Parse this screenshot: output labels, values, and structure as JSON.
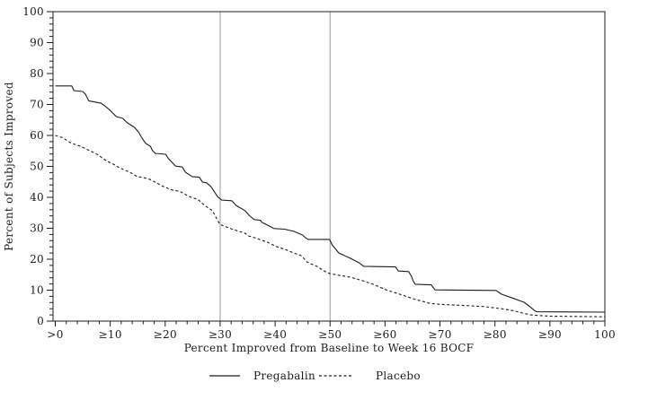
{
  "figure": {
    "background": "#ffffff",
    "line_color": "#1c1c1c",
    "reference_line_color": "#ababab",
    "text_color": "#1c1c1c"
  },
  "chart_data": {
    "type": "line",
    "title": "",
    "xlabel": "Percent Improved from Baseline to Week 16 BOCF",
    "ylabel": "Percent of Subjects Improved",
    "xlim": [
      0,
      100
    ],
    "ylim": [
      0,
      100
    ],
    "grid": false,
    "legend_position": "bottom",
    "x_tick_values": [
      0,
      10,
      20,
      30,
      40,
      50,
      60,
      70,
      80,
      90,
      100
    ],
    "x_tick_labels": [
      ">0",
      "≥10",
      "≥20",
      "≥30",
      "≥40",
      "≥50",
      "≥60",
      "≥70",
      "≥80",
      "≥90",
      "100"
    ],
    "y_tick_values": [
      0,
      10,
      20,
      30,
      40,
      50,
      60,
      70,
      80,
      90,
      100
    ],
    "minor_tick_step": 2,
    "reference_lines_x": [
      30,
      50
    ],
    "series": [
      {
        "name": "Pregabalin",
        "style": "solid",
        "points": [
          [
            0,
            76
          ],
          [
            3,
            76
          ],
          [
            3.4,
            74.5
          ],
          [
            5,
            74.2
          ],
          [
            5.5,
            73.3
          ],
          [
            6.1,
            71.2
          ],
          [
            8.3,
            70.4
          ],
          [
            9,
            69.6
          ],
          [
            9.8,
            68.4
          ],
          [
            11.1,
            66.1
          ],
          [
            12.3,
            65.5
          ],
          [
            13.1,
            64.1
          ],
          [
            14.4,
            62.6
          ],
          [
            15.2,
            61
          ],
          [
            15.7,
            59.4
          ],
          [
            16.4,
            57.5
          ],
          [
            17.3,
            56.5
          ],
          [
            17.7,
            55.1
          ],
          [
            18.2,
            54.2
          ],
          [
            20.1,
            53.9
          ],
          [
            20.6,
            52.5
          ],
          [
            21.4,
            51
          ],
          [
            21.9,
            50.1
          ],
          [
            23.1,
            49.8
          ],
          [
            23.7,
            48.1
          ],
          [
            24.5,
            47.2
          ],
          [
            24.9,
            46.7
          ],
          [
            26.2,
            46.5
          ],
          [
            26.8,
            44.9
          ],
          [
            27.5,
            44.7
          ],
          [
            28.3,
            43.5
          ],
          [
            29.1,
            41.4
          ],
          [
            29.6,
            40.1
          ],
          [
            30.3,
            39.1
          ],
          [
            32.1,
            38.9
          ],
          [
            32.9,
            37.4
          ],
          [
            34.5,
            35.7
          ],
          [
            35.4,
            33.9
          ],
          [
            36.2,
            32.8
          ],
          [
            37.3,
            32.6
          ],
          [
            37.6,
            31.9
          ],
          [
            39.3,
            30.4
          ],
          [
            39.8,
            29.9
          ],
          [
            41.7,
            29.7
          ],
          [
            43.4,
            29
          ],
          [
            45,
            27.8
          ],
          [
            45.5,
            27
          ],
          [
            46,
            26.4
          ],
          [
            49.9,
            26.4
          ],
          [
            50.4,
            24.6
          ],
          [
            51.6,
            22
          ],
          [
            53.7,
            20.3
          ],
          [
            55.3,
            18.8
          ],
          [
            56.1,
            17.7
          ],
          [
            61.9,
            17.5
          ],
          [
            62.4,
            16.2
          ],
          [
            64.3,
            16
          ],
          [
            64.8,
            14.5
          ],
          [
            65.1,
            13
          ],
          [
            65.5,
            11.9
          ],
          [
            68.4,
            11.7
          ],
          [
            68.7,
            11
          ],
          [
            69.1,
            10.1
          ],
          [
            80.2,
            9.9
          ],
          [
            81.2,
            8.7
          ],
          [
            83.6,
            7.2
          ],
          [
            85.3,
            6.1
          ],
          [
            86.4,
            4.6
          ],
          [
            87.2,
            3.4
          ],
          [
            87.6,
            3
          ],
          [
            100,
            2.9
          ]
        ]
      },
      {
        "name": "Placebo",
        "style": "dashed",
        "points": [
          [
            0,
            60
          ],
          [
            1.3,
            59.3
          ],
          [
            2.9,
            57.5
          ],
          [
            4.6,
            56.5
          ],
          [
            6.2,
            55.1
          ],
          [
            7,
            54.5
          ],
          [
            7.9,
            53.6
          ],
          [
            8.7,
            52.5
          ],
          [
            9.5,
            51.6
          ],
          [
            10.6,
            50.7
          ],
          [
            11.6,
            49.6
          ],
          [
            12.8,
            48.7
          ],
          [
            13.9,
            47.8
          ],
          [
            14.9,
            46.7
          ],
          [
            16,
            46.4
          ],
          [
            17.2,
            45.8
          ],
          [
            18.2,
            44.9
          ],
          [
            19.3,
            43.8
          ],
          [
            20.5,
            42.9
          ],
          [
            21.4,
            42.3
          ],
          [
            22.6,
            42
          ],
          [
            23.7,
            40.9
          ],
          [
            24.7,
            40
          ],
          [
            25.9,
            39.4
          ],
          [
            27,
            37.7
          ],
          [
            27.9,
            36.5
          ],
          [
            28.6,
            35.7
          ],
          [
            29.4,
            33
          ],
          [
            29.9,
            31.5
          ],
          [
            30.3,
            31
          ],
          [
            32.4,
            29.6
          ],
          [
            34.5,
            28.4
          ],
          [
            35.2,
            27.5
          ],
          [
            36.2,
            27
          ],
          [
            37.8,
            26
          ],
          [
            38.6,
            25.5
          ],
          [
            39.3,
            24.9
          ],
          [
            40.2,
            24.1
          ],
          [
            41.8,
            23.2
          ],
          [
            43.4,
            22
          ],
          [
            44.7,
            21.2
          ],
          [
            45.2,
            20.3
          ],
          [
            45.8,
            19.1
          ],
          [
            46.8,
            18.3
          ],
          [
            47.6,
            17.7
          ],
          [
            48.8,
            16.3
          ],
          [
            49.9,
            15.4
          ],
          [
            51.6,
            14.8
          ],
          [
            53.7,
            14.2
          ],
          [
            56,
            13
          ],
          [
            58,
            11.8
          ],
          [
            60.2,
            10.1
          ],
          [
            63.4,
            8.3
          ],
          [
            65.5,
            7
          ],
          [
            66.8,
            6.4
          ],
          [
            68,
            5.8
          ],
          [
            70,
            5.4
          ],
          [
            74,
            5.1
          ],
          [
            78,
            4.7
          ],
          [
            80.2,
            4.2
          ],
          [
            82,
            3.8
          ],
          [
            83.5,
            3.3
          ],
          [
            85,
            2.6
          ],
          [
            86.5,
            2
          ],
          [
            88,
            1.8
          ],
          [
            90,
            1.6
          ],
          [
            100,
            1.4
          ]
        ]
      }
    ]
  }
}
